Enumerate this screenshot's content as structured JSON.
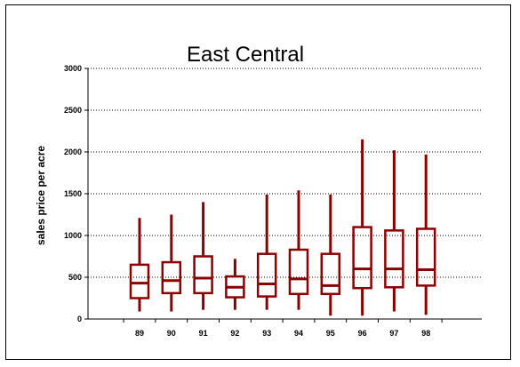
{
  "chart_data": {
    "type": "box",
    "title": "East Central",
    "xlabel": "",
    "ylabel": "sales price per acre",
    "ylim": [
      0,
      3000
    ],
    "yticks": [
      0,
      500,
      1000,
      1500,
      2000,
      2500,
      3000
    ],
    "grid": true,
    "color": "#8B0000",
    "categories": [
      "89",
      "90",
      "91",
      "92",
      "93",
      "94",
      "95",
      "96",
      "97",
      "98"
    ],
    "boxes": [
      {
        "label": "89",
        "min": 90,
        "q1": 250,
        "median": 430,
        "q3": 650,
        "max": 1210
      },
      {
        "label": "90",
        "min": 90,
        "q1": 310,
        "median": 460,
        "q3": 680,
        "max": 1250
      },
      {
        "label": "91",
        "min": 110,
        "q1": 310,
        "median": 490,
        "q3": 750,
        "max": 1400
      },
      {
        "label": "92",
        "min": 110,
        "q1": 260,
        "median": 380,
        "q3": 510,
        "max": 720
      },
      {
        "label": "93",
        "min": 110,
        "q1": 270,
        "median": 420,
        "q3": 780,
        "max": 1490
      },
      {
        "label": "94",
        "min": 110,
        "q1": 300,
        "median": 480,
        "q3": 830,
        "max": 1540
      },
      {
        "label": "95",
        "min": 40,
        "q1": 300,
        "median": 400,
        "q3": 780,
        "max": 1490
      },
      {
        "label": "96",
        "min": 40,
        "q1": 370,
        "median": 600,
        "q3": 1100,
        "max": 2150
      },
      {
        "label": "97",
        "min": 90,
        "q1": 380,
        "median": 600,
        "q3": 1060,
        "max": 2020
      },
      {
        "label": "98",
        "min": 50,
        "q1": 400,
        "median": 590,
        "q3": 1080,
        "max": 1970
      }
    ]
  }
}
